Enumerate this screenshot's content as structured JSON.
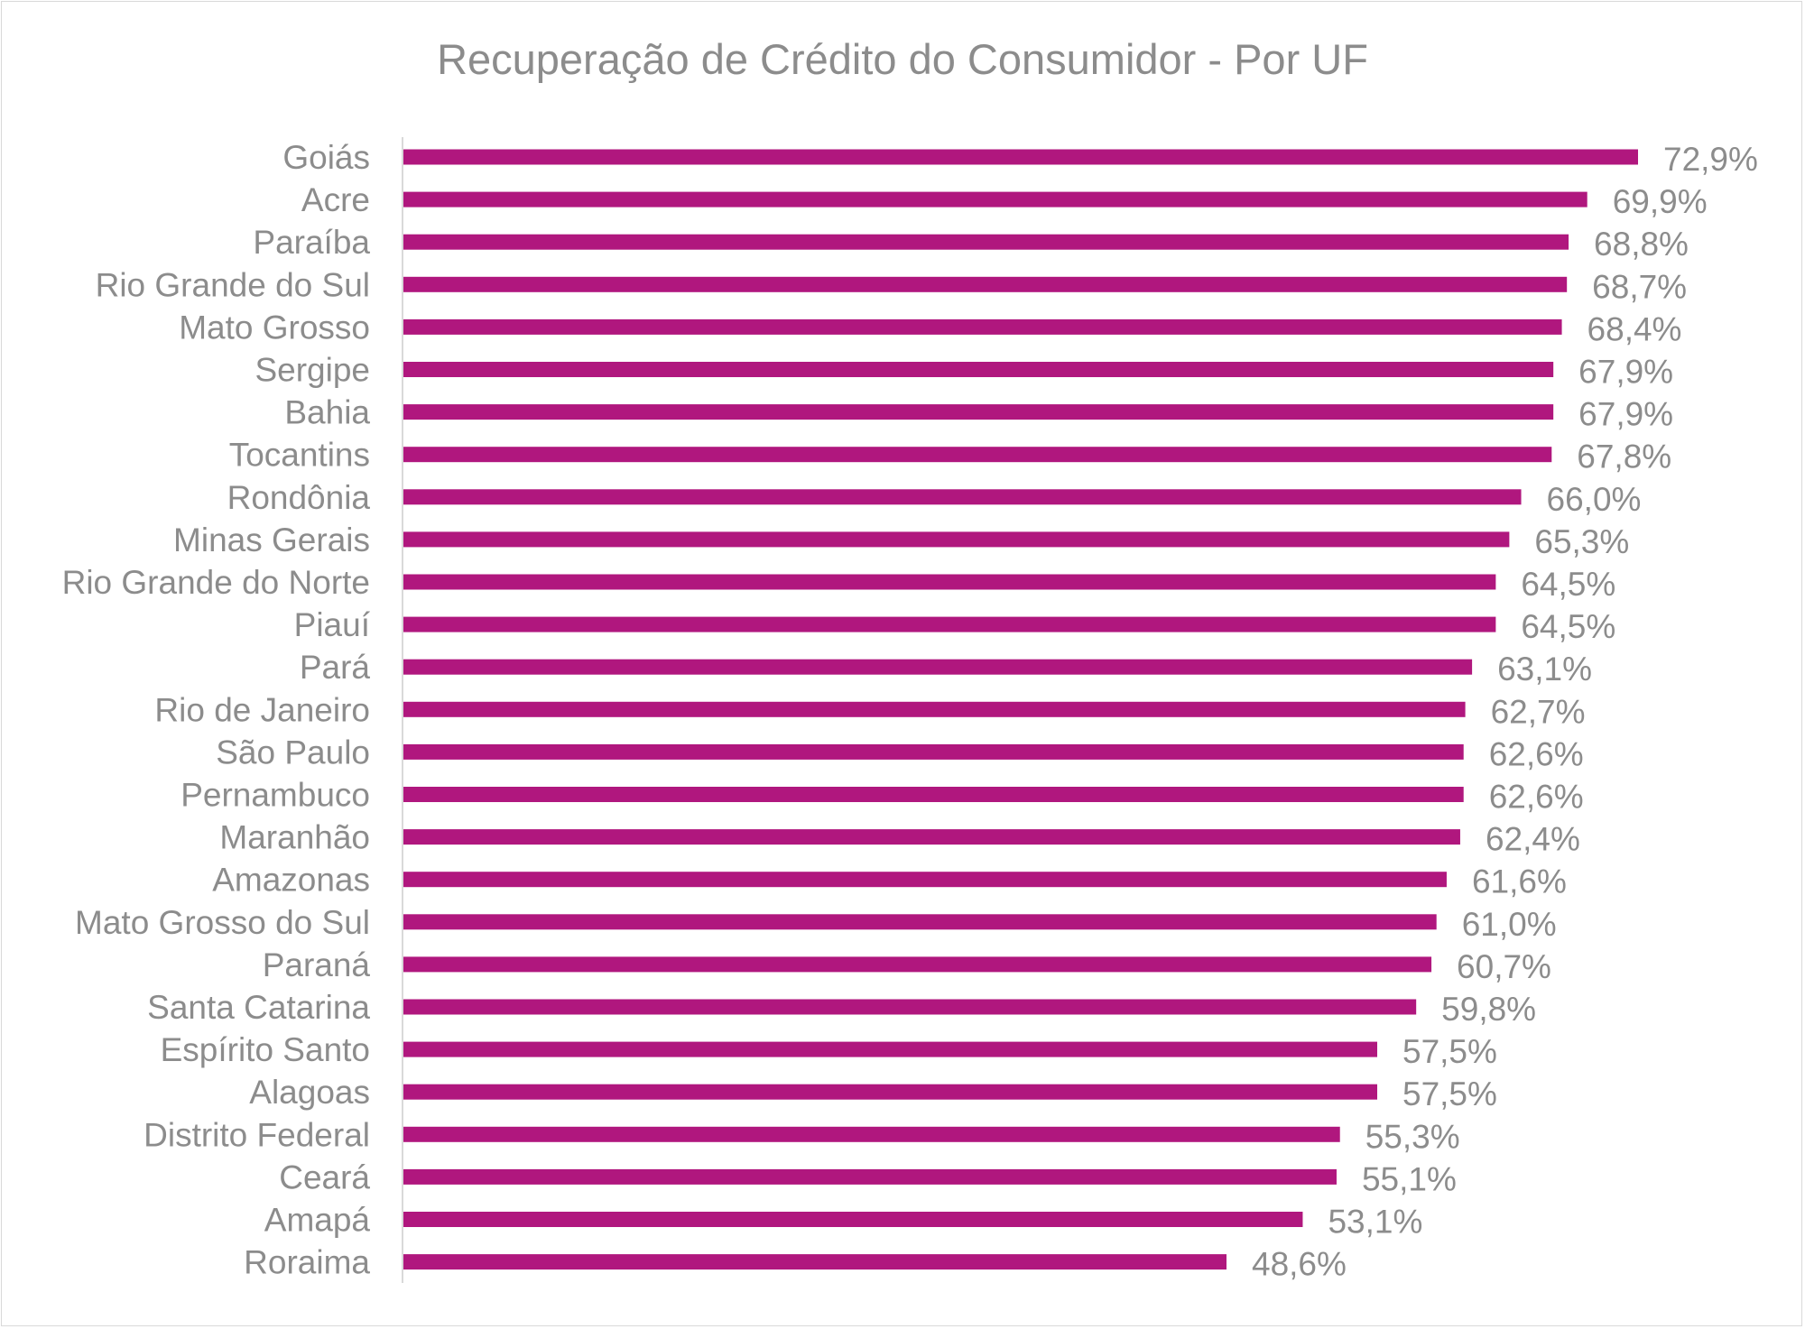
{
  "chart_data": {
    "type": "bar",
    "orientation": "horizontal",
    "title": "Recuperação de Crédito do Consumidor - Por UF",
    "bar_color": "#b0177e",
    "text_color": "#8c8c8c",
    "xlim": [
      0,
      72.9
    ],
    "grid": false,
    "legend": "none",
    "categories": [
      "Goiás",
      "Acre",
      "Paraíba",
      "Rio Grande do Sul",
      "Mato Grosso",
      "Sergipe",
      "Bahia",
      "Tocantins",
      "Rondônia",
      "Minas Gerais",
      "Rio Grande do Norte",
      "Piauí",
      "Pará",
      "Rio de Janeiro",
      "São Paulo",
      "Pernambuco",
      "Maranhão",
      "Amazonas",
      "Mato Grosso do Sul",
      "Paraná",
      "Santa Catarina",
      "Espírito Santo",
      "Alagoas",
      "Distrito Federal",
      "Ceará",
      "Amapá",
      "Roraima"
    ],
    "values": [
      72.9,
      69.9,
      68.8,
      68.7,
      68.4,
      67.9,
      67.9,
      67.8,
      66.0,
      65.3,
      64.5,
      64.5,
      63.1,
      62.7,
      62.6,
      62.6,
      62.4,
      61.6,
      61.0,
      60.7,
      59.8,
      57.5,
      57.5,
      55.3,
      55.1,
      53.1,
      48.6
    ],
    "data_labels": [
      "72,9%",
      "69,9%",
      "68,8%",
      "68,7%",
      "68,4%",
      "67,9%",
      "67,9%",
      "67,8%",
      "66,0%",
      "65,3%",
      "64,5%",
      "64,5%",
      "63,1%",
      "62,7%",
      "62,6%",
      "62,6%",
      "62,4%",
      "61,6%",
      "61,0%",
      "60,7%",
      "59,8%",
      "57,5%",
      "57,5%",
      "55,3%",
      "55,1%",
      "53,1%",
      "48,6%"
    ]
  }
}
